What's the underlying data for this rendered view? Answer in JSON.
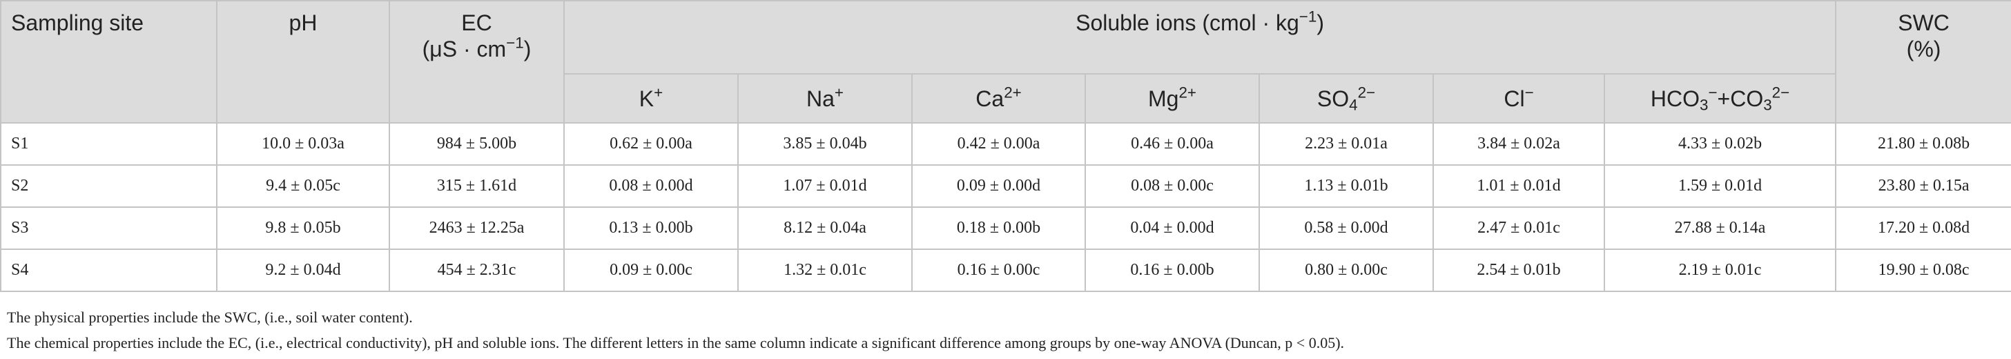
{
  "table": {
    "header_row1": [
      {
        "lines": [
          [
            {
              "base": "Sampling site"
            }
          ]
        ]
      },
      {
        "lines": [
          [
            {
              "base": "pH"
            }
          ]
        ]
      },
      {
        "lines": [
          [
            {
              "base": "EC"
            }
          ],
          [
            {
              "base": "(μS · cm"
            },
            {
              "sup": "−1"
            },
            {
              "base": ")"
            }
          ]
        ]
      },
      {
        "lines": [
          [
            {
              "base": "Soluble ions (cmol · kg"
            },
            {
              "sup": "−1"
            },
            {
              "base": ")"
            }
          ]
        ]
      },
      {
        "lines": [
          [
            {
              "base": "SWC"
            }
          ],
          [
            {
              "base": "(%)"
            }
          ]
        ]
      }
    ],
    "header_row2": [
      {
        "lines": [
          [
            {
              "base": "K"
            },
            {
              "sup": "+"
            }
          ]
        ]
      },
      {
        "lines": [
          [
            {
              "base": "Na"
            },
            {
              "sup": "+"
            }
          ]
        ]
      },
      {
        "lines": [
          [
            {
              "base": "Ca"
            },
            {
              "sup": "2+"
            }
          ]
        ]
      },
      {
        "lines": [
          [
            {
              "base": "Mg"
            },
            {
              "sup": "2+"
            }
          ]
        ]
      },
      {
        "lines": [
          [
            {
              "base": "SO"
            },
            {
              "sub": "4"
            },
            {
              "sup": "2−"
            }
          ]
        ]
      },
      {
        "lines": [
          [
            {
              "base": "Cl"
            },
            {
              "sup": "−"
            }
          ]
        ]
      },
      {
        "lines": [
          [
            {
              "base": "HCO"
            },
            {
              "sub": "3"
            },
            {
              "sup": "−"
            },
            {
              "base": "+CO"
            },
            {
              "sub": "3"
            },
            {
              "sup": "2−"
            }
          ]
        ]
      }
    ],
    "rows": [
      [
        "S1",
        "10.0 ± 0.03a",
        "984 ± 5.00b",
        "0.62 ± 0.00a",
        "3.85 ± 0.04b",
        "0.42 ± 0.00a",
        "0.46 ± 0.00a",
        "2.23 ± 0.01a",
        "3.84 ± 0.02a",
        "4.33 ± 0.02b",
        "21.80 ± 0.08b"
      ],
      [
        "S2",
        "9.4 ± 0.05c",
        "315 ± 1.61d",
        "0.08 ± 0.00d",
        "1.07 ± 0.01d",
        "0.09 ± 0.00d",
        "0.08 ± 0.00c",
        "1.13 ± 0.01b",
        "1.01 ± 0.01d",
        "1.59 ± 0.01d",
        "23.80 ± 0.15a"
      ],
      [
        "S3",
        "9.8 ± 0.05b",
        "2463 ± 12.25a",
        "0.13 ± 0.00b",
        "8.12 ± 0.04a",
        "0.18 ± 0.00b",
        "0.04 ± 0.00d",
        "0.58 ± 0.00d",
        "2.47 ± 0.01c",
        "27.88 ± 0.14a",
        "17.20 ± 0.08d"
      ],
      [
        "S4",
        "9.2 ± 0.04d",
        "454 ± 2.31c",
        "0.09 ± 0.00c",
        "1.32 ± 0.01c",
        "0.16 ± 0.00c",
        "0.16 ± 0.00b",
        "0.80 ± 0.00c",
        "2.54 ± 0.01b",
        "2.19 ± 0.01c",
        "19.90 ± 0.08c"
      ]
    ]
  },
  "footnotes": [
    "The physical properties include the SWC, (i.e., soil water content).",
    "The chemical properties include the EC, (i.e., electrical conductivity), pH and soluble ions. The different letters in the same column indicate a significant difference among groups by one-way ANOVA (Duncan, p < 0.05)."
  ]
}
